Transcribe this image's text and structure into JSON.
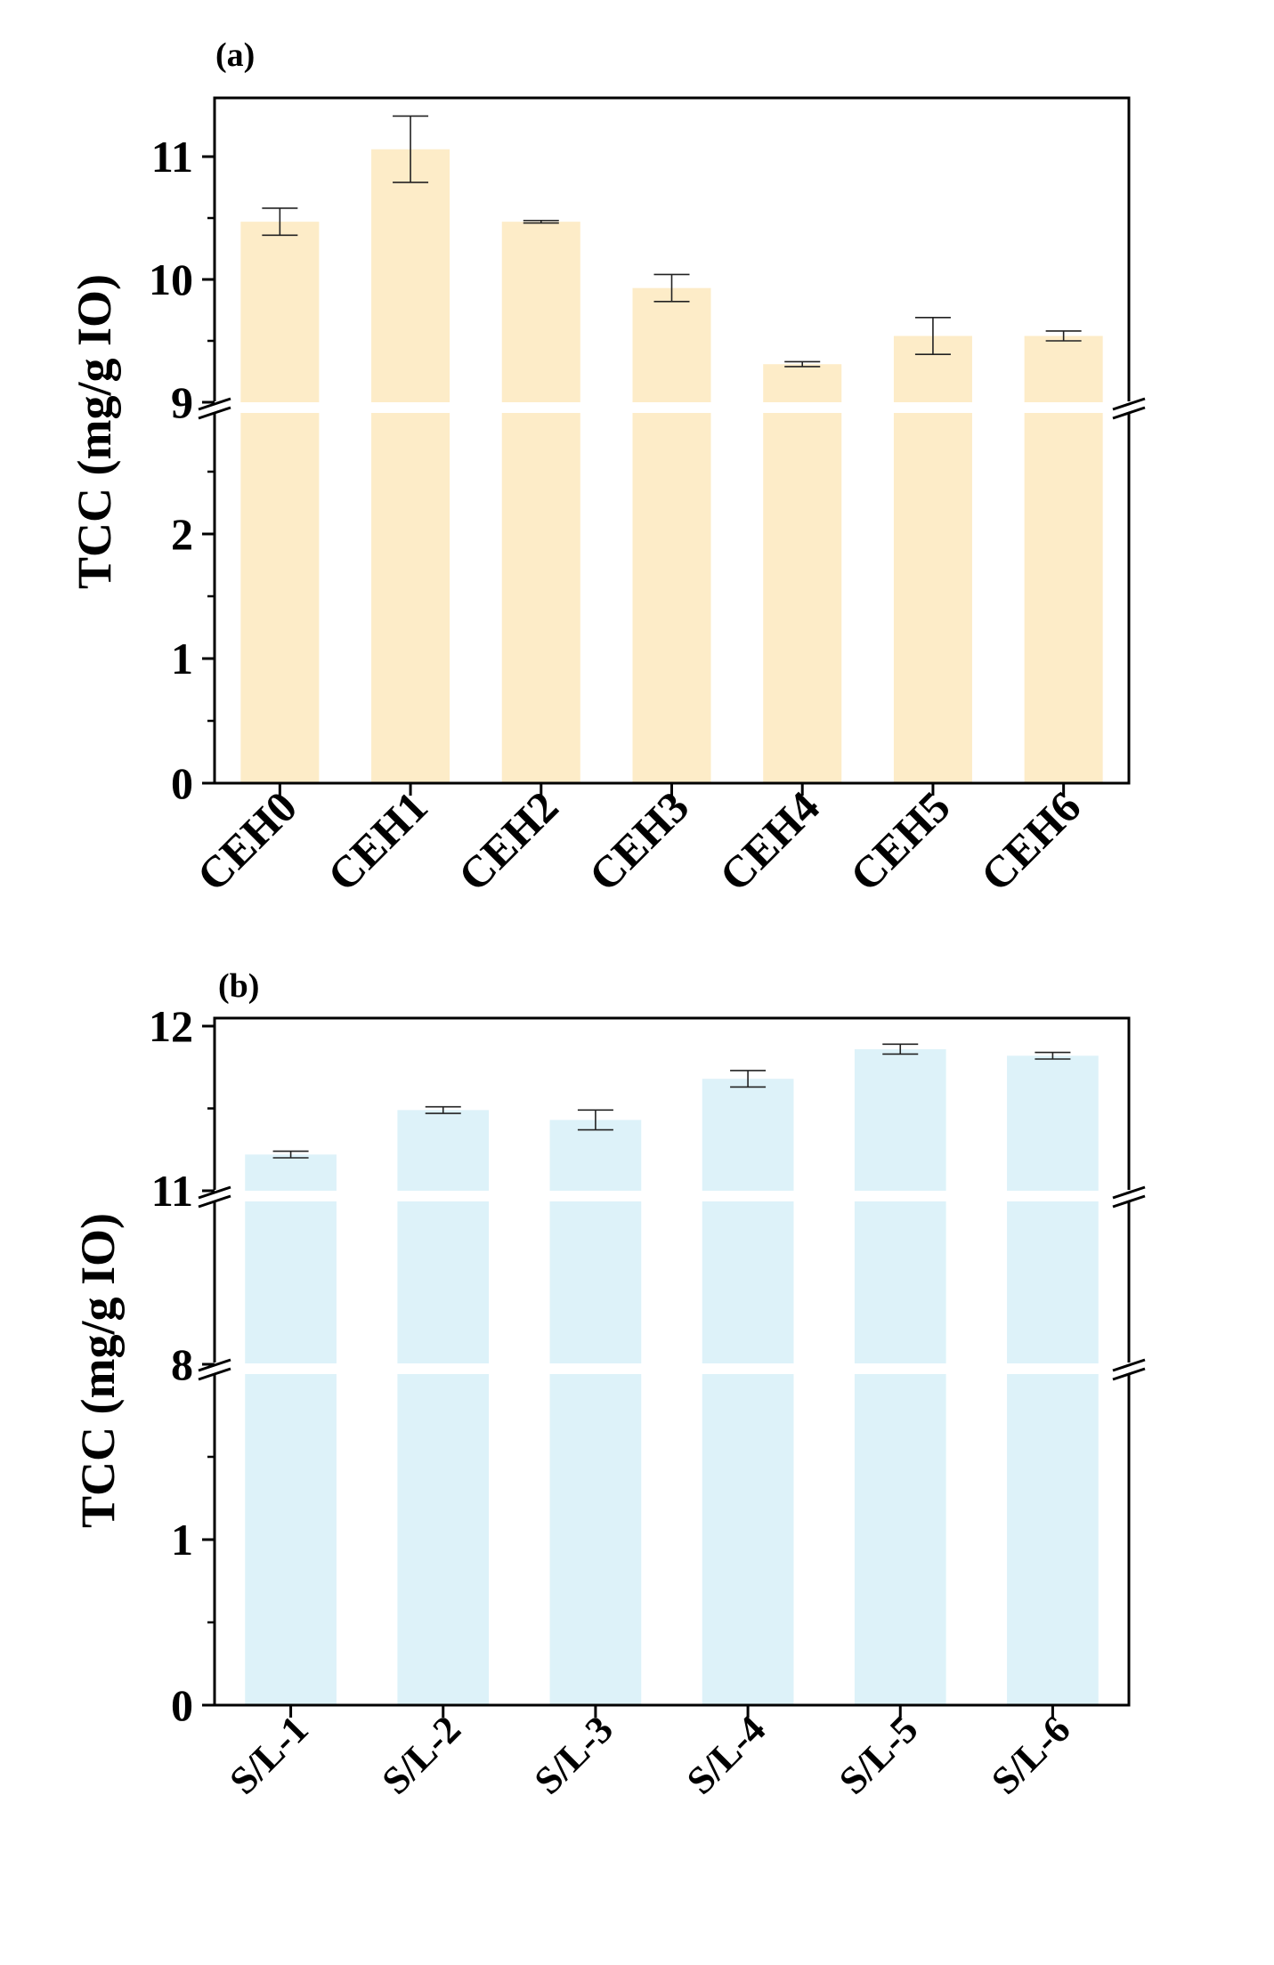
{
  "chart_data": [
    {
      "panel": "(a)",
      "type": "bar",
      "ylabel": "TCC (mg/g IO)",
      "xlabel": "",
      "categories": [
        "CEH0",
        "CEH1",
        "CEH2",
        "CEH3",
        "CEH4",
        "CEH5",
        "CEH6"
      ],
      "values": [
        10.47,
        11.06,
        10.47,
        9.93,
        9.31,
        9.54,
        9.54
      ],
      "errors": [
        0.11,
        0.27,
        0.01,
        0.11,
        0.02,
        0.15,
        0.04
      ],
      "bar_color": "#fdecc8",
      "axis_break": {
        "lower": [
          0,
          3
        ],
        "upper": [
          9,
          11.5
        ]
      },
      "y_ticks_lower": [
        0,
        1,
        2
      ],
      "y_ticks_upper": [
        9,
        10,
        11
      ],
      "tick_labels_lower": [
        "0",
        "1",
        "2"
      ],
      "tick_labels_upper": [
        "9",
        "10",
        "11"
      ]
    },
    {
      "panel": "(b)",
      "type": "bar",
      "ylabel": "TCC (mg/g IO)",
      "xlabel": "",
      "categories": [
        "S/L-1",
        "S/L-2",
        "S/L-3",
        "S/L-4",
        "S/L-5",
        "S/L-6"
      ],
      "values": [
        11.22,
        11.49,
        11.43,
        11.68,
        11.86,
        11.82
      ],
      "errors": [
        0.02,
        0.02,
        0.06,
        0.05,
        0.03,
        0.02
      ],
      "bar_color": "#ddf2f9",
      "axis_break": {
        "segments": [
          [
            0,
            1.8
          ],
          [
            8,
            8.05
          ],
          [
            11,
            12
          ]
        ]
      },
      "y_ticks": [
        0,
        1,
        8,
        11,
        12
      ],
      "tick_labels": [
        "0",
        "1",
        "8",
        "11",
        "12"
      ]
    }
  ]
}
